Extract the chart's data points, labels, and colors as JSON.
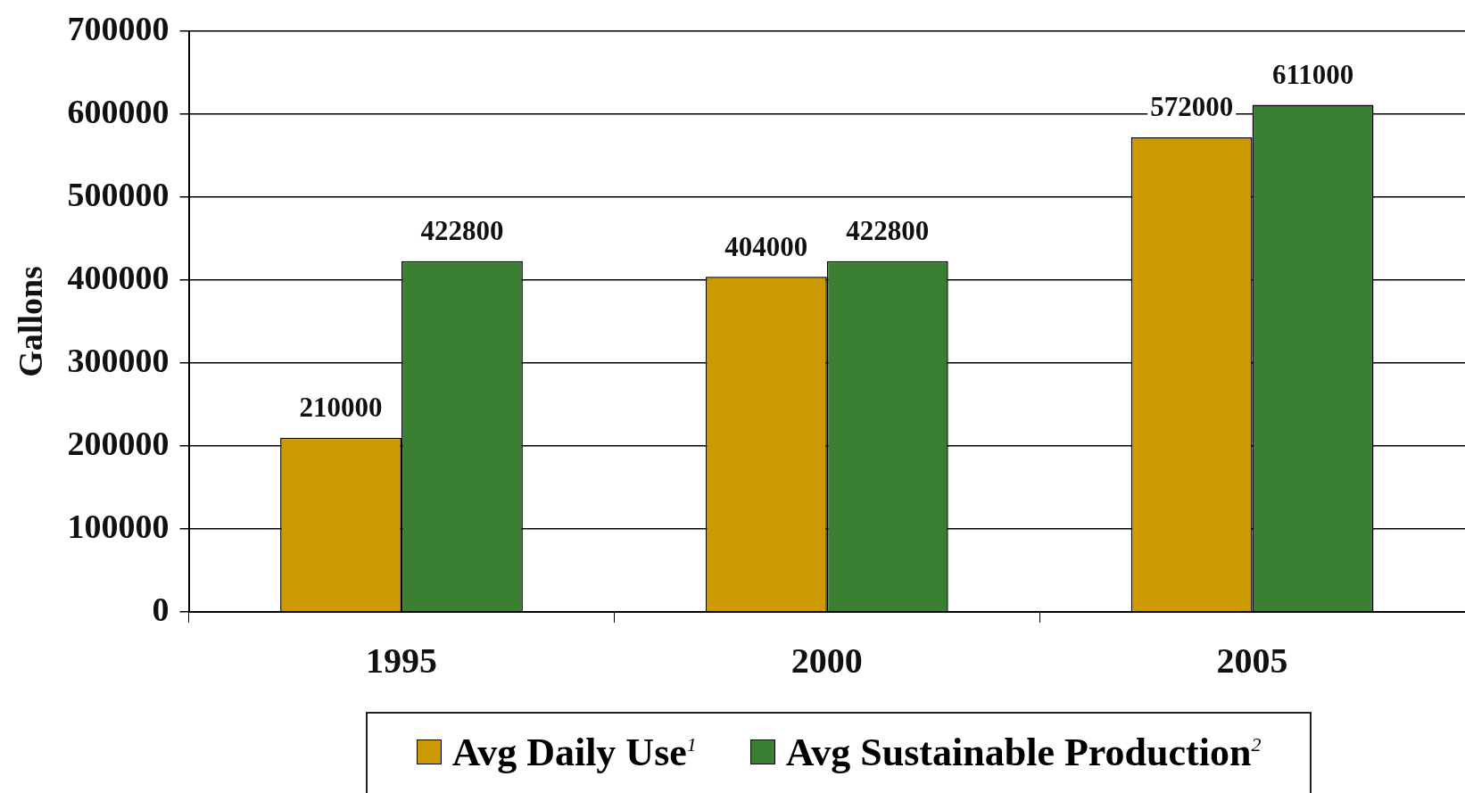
{
  "chart_data": {
    "type": "bar",
    "ylabel": "Gallons",
    "categories": [
      "1995",
      "2000",
      "2005"
    ],
    "series": [
      {
        "name": "Avg Daily Use$^{1}$",
        "color": "#cc9900",
        "values": [
          210000,
          404000,
          572000
        ]
      },
      {
        "name": "Avg Sustainable Production$^{2}$",
        "color": "#3b7f33",
        "values": [
          422800,
          422800,
          611000
        ]
      }
    ],
    "ylim": [
      0,
      700000
    ],
    "yticks": [
      0,
      100000,
      200000,
      300000,
      400000,
      500000,
      600000,
      700000
    ],
    "grid": "y",
    "legend": "bottom",
    "data_labels": true
  }
}
